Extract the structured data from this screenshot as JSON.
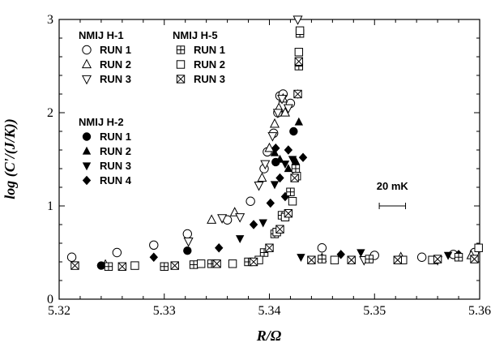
{
  "chart_data": {
    "type": "scatter",
    "xlabel": "R/Ω",
    "ylabel": "log (C'/(J/K))",
    "xlim": [
      5.32,
      5.36
    ],
    "ylim": [
      0,
      3
    ],
    "x_ticks": [
      "5.32",
      "5.33",
      "5.34",
      "5.35",
      "5.36"
    ],
    "y_ticks": [
      "0",
      "1",
      "2",
      "3"
    ],
    "legend_groups": [
      {
        "title": "NMIJ H-1",
        "entries": [
          {
            "marker": "circle-open",
            "label": "RUN 1"
          },
          {
            "marker": "triangle-up-open",
            "label": "RUN 2"
          },
          {
            "marker": "triangle-down-open",
            "label": "RUN 3"
          }
        ]
      },
      {
        "title": "NMIJ H-5",
        "entries": [
          {
            "marker": "square-plus",
            "label": "RUN 1"
          },
          {
            "marker": "square-open",
            "label": "RUN 2"
          },
          {
            "marker": "square-x",
            "label": "RUN 3"
          }
        ]
      },
      {
        "title": "NMIJ H-2",
        "entries": [
          {
            "marker": "circle-filled",
            "label": "RUN 1"
          },
          {
            "marker": "triangle-up-filled",
            "label": "RUN 2"
          },
          {
            "marker": "triangle-down-filled",
            "label": "RUN 3"
          },
          {
            "marker": "diamond-filled",
            "label": "RUN 4"
          }
        ]
      }
    ],
    "scale_bar": {
      "label": "20 mK",
      "x_center": 5.3517,
      "y": 1.0,
      "width": 0.0025
    },
    "series": [
      {
        "marker": "circle-open",
        "points": [
          [
            5.3212,
            0.45
          ],
          [
            5.3255,
            0.5
          ],
          [
            5.329,
            0.58
          ],
          [
            5.3322,
            0.7
          ],
          [
            5.336,
            0.85
          ],
          [
            5.3382,
            1.05
          ],
          [
            5.3395,
            1.4
          ],
          [
            5.3398,
            1.58
          ],
          [
            5.3404,
            1.78
          ],
          [
            5.3408,
            2.0
          ],
          [
            5.341,
            2.18
          ],
          [
            5.3413,
            2.2
          ],
          [
            5.342,
            2.1
          ],
          [
            5.345,
            0.55
          ],
          [
            5.35,
            0.47
          ],
          [
            5.3545,
            0.45
          ],
          [
            5.3575,
            0.48
          ],
          [
            5.3595,
            0.5
          ]
        ]
      },
      {
        "marker": "triangle-up-open",
        "points": [
          [
            5.3244,
            0.37
          ],
          [
            5.3345,
            0.85
          ],
          [
            5.3367,
            0.93
          ],
          [
            5.3393,
            1.3
          ],
          [
            5.34,
            1.62
          ],
          [
            5.3405,
            1.88
          ],
          [
            5.3409,
            2.05
          ],
          [
            5.3413,
            2.15
          ],
          [
            5.3415,
            2.0
          ],
          [
            5.345,
            0.44
          ],
          [
            5.3525,
            0.45
          ],
          [
            5.3592,
            0.47
          ]
        ]
      },
      {
        "marker": "triangle-down-open",
        "points": [
          [
            5.3323,
            0.62
          ],
          [
            5.3355,
            0.87
          ],
          [
            5.3372,
            0.88
          ],
          [
            5.339,
            1.22
          ],
          [
            5.3396,
            1.45
          ],
          [
            5.3403,
            1.75
          ],
          [
            5.3408,
            2.0
          ],
          [
            5.3412,
            2.15
          ],
          [
            5.3418,
            2.05
          ],
          [
            5.3427,
            3.0
          ],
          [
            5.349,
            0.42
          ],
          [
            5.356,
            0.42
          ]
        ]
      },
      {
        "marker": "circle-filled",
        "points": [
          [
            5.324,
            0.36
          ],
          [
            5.3322,
            0.52
          ],
          [
            5.3406,
            1.47
          ],
          [
            5.3423,
            1.8
          ]
        ]
      },
      {
        "marker": "triangle-up-filled",
        "points": [
          [
            5.3405,
            1.57
          ],
          [
            5.341,
            1.5
          ],
          [
            5.3418,
            1.4
          ],
          [
            5.3425,
            1.48
          ],
          [
            5.3428,
            1.9
          ]
        ]
      },
      {
        "marker": "triangle-down-filled",
        "points": [
          [
            5.3372,
            0.65
          ],
          [
            5.3394,
            0.82
          ],
          [
            5.3405,
            1.23
          ],
          [
            5.3415,
            1.45
          ],
          [
            5.3422,
            1.5
          ],
          [
            5.343,
            0.45
          ],
          [
            5.3487,
            0.5
          ],
          [
            5.357,
            0.47
          ]
        ]
      },
      {
        "marker": "diamond-filled",
        "points": [
          [
            5.329,
            0.45
          ],
          [
            5.3352,
            0.55
          ],
          [
            5.3385,
            0.8
          ],
          [
            5.3401,
            1.03
          ],
          [
            5.3406,
            1.62
          ],
          [
            5.341,
            1.3
          ],
          [
            5.3415,
            1.1
          ],
          [
            5.3418,
            1.6
          ],
          [
            5.3427,
            2.2
          ],
          [
            5.3432,
            1.52
          ],
          [
            5.3468,
            0.48
          ],
          [
            5.358,
            0.48
          ]
        ]
      },
      {
        "marker": "square-plus",
        "points": [
          [
            5.3247,
            0.35
          ],
          [
            5.33,
            0.35
          ],
          [
            5.3328,
            0.37
          ],
          [
            5.3345,
            0.38
          ],
          [
            5.338,
            0.4
          ],
          [
            5.3395,
            0.5
          ],
          [
            5.3405,
            0.7
          ],
          [
            5.3412,
            0.9
          ],
          [
            5.342,
            1.15
          ],
          [
            5.3425,
            1.4
          ],
          [
            5.3428,
            2.5
          ],
          [
            5.3429,
            2.85
          ],
          [
            5.345,
            0.43
          ],
          [
            5.3495,
            0.43
          ],
          [
            5.358,
            0.45
          ]
        ]
      },
      {
        "marker": "square-open",
        "points": [
          [
            5.3272,
            0.36
          ],
          [
            5.3335,
            0.38
          ],
          [
            5.3365,
            0.38
          ],
          [
            5.339,
            0.42
          ],
          [
            5.3407,
            0.72
          ],
          [
            5.3415,
            0.88
          ],
          [
            5.3422,
            1.05
          ],
          [
            5.3426,
            1.32
          ],
          [
            5.3428,
            2.65
          ],
          [
            5.3429,
            2.88
          ],
          [
            5.3462,
            0.42
          ],
          [
            5.3527,
            0.42
          ],
          [
            5.3555,
            0.42
          ],
          [
            5.3599,
            0.55
          ]
        ]
      },
      {
        "marker": "square-x",
        "points": [
          [
            5.3215,
            0.36
          ],
          [
            5.326,
            0.35
          ],
          [
            5.331,
            0.36
          ],
          [
            5.335,
            0.38
          ],
          [
            5.3385,
            0.4
          ],
          [
            5.34,
            0.55
          ],
          [
            5.341,
            0.75
          ],
          [
            5.3418,
            0.92
          ],
          [
            5.3424,
            1.3
          ],
          [
            5.3427,
            2.2
          ],
          [
            5.3428,
            2.55
          ],
          [
            5.344,
            0.42
          ],
          [
            5.3478,
            0.42
          ],
          [
            5.3522,
            0.42
          ],
          [
            5.356,
            0.43
          ],
          [
            5.3595,
            0.43
          ]
        ]
      }
    ]
  }
}
